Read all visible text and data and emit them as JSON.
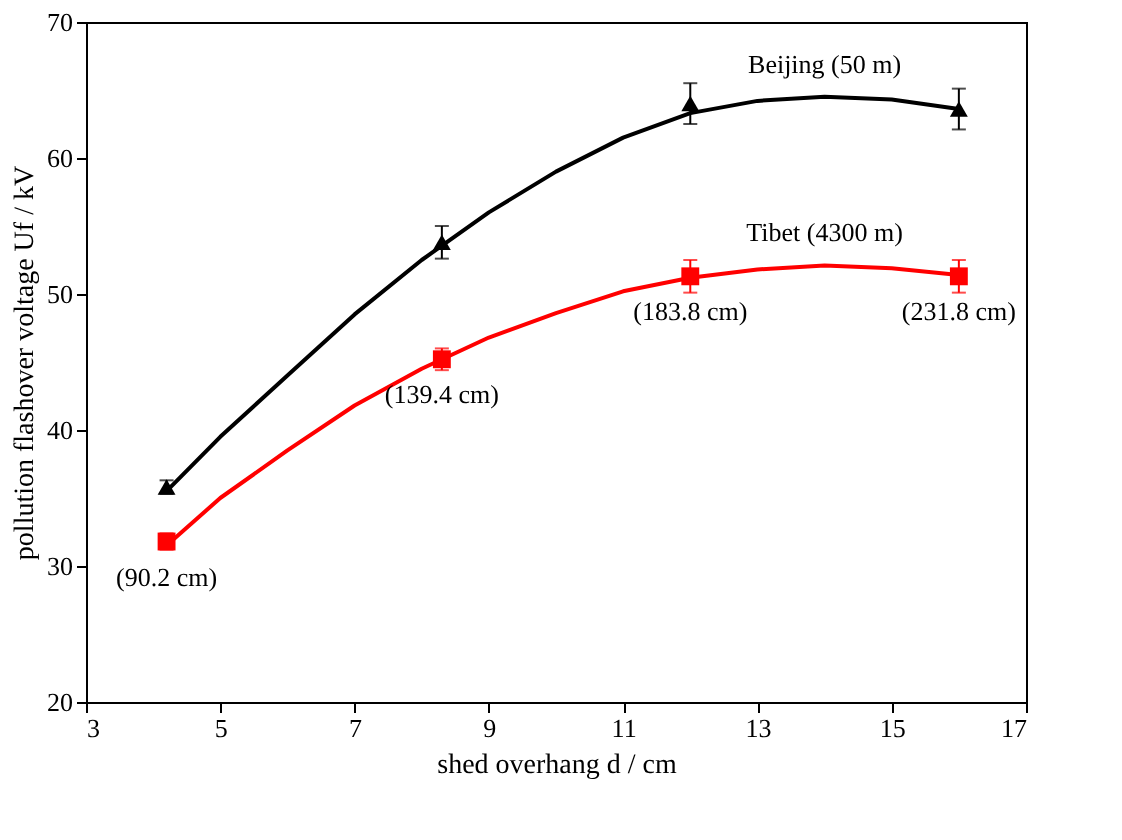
{
  "chart_data": {
    "type": "scatter",
    "xlabel": "shed overhang d / cm",
    "ylabel": "pollution flashover voltage Uf / kV",
    "xlim": [
      3,
      17
    ],
    "xticks": [
      3,
      5,
      7,
      9,
      11,
      13,
      15,
      17
    ],
    "ylim": [
      20,
      70
    ],
    "yticks": [
      20,
      30,
      40,
      50,
      60,
      70
    ],
    "grid": false,
    "series": [
      {
        "type": "line",
        "color": "#000000",
        "x": [
          4.2,
          5,
          6,
          7,
          8,
          9,
          10,
          11,
          12,
          13,
          14,
          15,
          16
        ],
        "values": [
          35.5,
          39.5,
          44,
          48.5,
          52.5,
          56,
          59,
          61.5,
          63.3,
          64.2,
          64.5,
          64.3,
          63.6
        ]
      },
      {
        "type": "line",
        "color": "#ff0000",
        "x": [
          4.2,
          5,
          6,
          7,
          8,
          9,
          10,
          11,
          12,
          13,
          14,
          15,
          16
        ],
        "values": [
          31.5,
          35,
          38.5,
          41.8,
          44.5,
          46.8,
          48.6,
          50.2,
          51.2,
          51.8,
          52.1,
          51.9,
          51.4
        ]
      },
      {
        "marker": "triangle",
        "color": "#000000",
        "x": [
          4.2,
          8.3,
          12,
          16
        ],
        "values": [
          35.8,
          53.8,
          64,
          63.6
        ],
        "errors": [
          0.5,
          1.2,
          1.5,
          1.5
        ]
      },
      {
        "marker": "square",
        "color": "#ff0000",
        "x": [
          4.2,
          8.3,
          12,
          16
        ],
        "values": [
          31.8,
          45.2,
          51.3,
          51.3
        ],
        "errors": [
          0.6,
          0.8,
          1.2,
          1.2
        ]
      }
    ],
    "annotations": [
      {
        "text": "Beijing (50 m)",
        "x": 14,
        "y": 64.5
      },
      {
        "text": "Tibet (4300 m)",
        "x": 14,
        "y": 52.1
      },
      {
        "text": "(90.2 cm)",
        "x": 4.2,
        "y": 31.8
      },
      {
        "text": "(139.4 cm)",
        "x": 8.3,
        "y": 45.2
      },
      {
        "text": "(183.8 cm)",
        "x": 12,
        "y": 51.3
      },
      {
        "text": "(231.8 cm)",
        "x": 16,
        "y": 51.3
      }
    ]
  }
}
